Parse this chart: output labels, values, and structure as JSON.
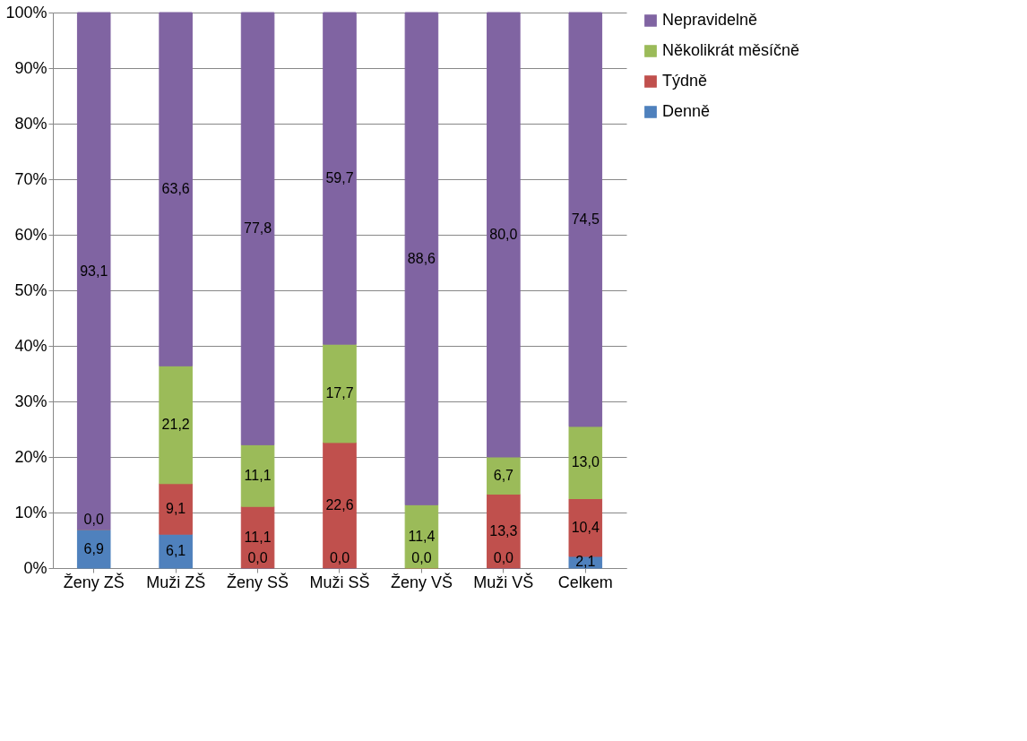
{
  "chart_data": {
    "type": "bar",
    "stacked": true,
    "categories": [
      "Ženy ZŠ",
      "Muži ZŠ",
      "Ženy SŠ",
      "Muži SŠ",
      "Ženy VŠ",
      "Muži VŠ",
      "Celkem"
    ],
    "series": [
      {
        "name": "Denně",
        "color": "#4f81bd",
        "values": [
          6.9,
          6.1,
          0.0,
          0.0,
          0.0,
          0.0,
          2.1
        ],
        "value_labels": [
          "6,9",
          "6,1",
          "0,0",
          "0,0",
          "0,0",
          "0,0",
          "2,1"
        ]
      },
      {
        "name": "Týdně",
        "color": "#c0504d",
        "values": [
          0.0,
          9.1,
          11.1,
          22.6,
          0.0,
          13.3,
          10.4
        ],
        "value_labels": [
          "0,0",
          "9,1",
          "11,1",
          "22,6",
          null,
          "13,3",
          "10,4"
        ]
      },
      {
        "name": "Několikrát měsíčně",
        "color": "#9bbb59",
        "values": [
          0.0,
          21.2,
          11.1,
          17.7,
          11.4,
          6.7,
          13.0
        ],
        "value_labels": [
          null,
          "21,2",
          "11,1",
          "17,7",
          "11,4",
          "6,7",
          "13,0"
        ]
      },
      {
        "name": "Nepravidelně",
        "color": "#8064a2",
        "values": [
          93.1,
          63.6,
          77.8,
          59.7,
          88.6,
          80.0,
          74.5
        ],
        "value_labels": [
          "93,1",
          "63,6",
          "77,8",
          "59,7",
          "88,6",
          "80,0",
          "74,5"
        ]
      }
    ],
    "ylim": [
      0,
      100
    ],
    "yticks": [
      {
        "value": 0,
        "label": "0%"
      },
      {
        "value": 10,
        "label": "10%"
      },
      {
        "value": 20,
        "label": "20%"
      },
      {
        "value": 30,
        "label": "30%"
      },
      {
        "value": 40,
        "label": "40%"
      },
      {
        "value": 50,
        "label": "50%"
      },
      {
        "value": 60,
        "label": "60%"
      },
      {
        "value": 70,
        "label": "70%"
      },
      {
        "value": 80,
        "label": "80%"
      },
      {
        "value": 90,
        "label": "90%"
      },
      {
        "value": 100,
        "label": "100%"
      }
    ],
    "grid": "y",
    "legend": "right"
  }
}
